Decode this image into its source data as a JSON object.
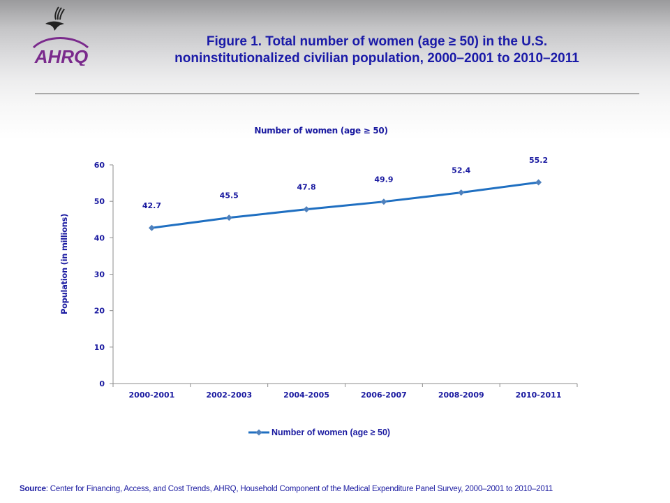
{
  "header": {
    "logos": [
      {
        "name": "hhs-eagle-icon"
      },
      {
        "name": "ahrq-logo",
        "text": "AHRQ"
      }
    ],
    "title_line1": "Figure 1. Total number of women (age ≥ 50) in the U.S.",
    "title_line2": "noninstitutionalized  civilian  population, 2000–2001 to 2010–2011"
  },
  "colors": {
    "title_text": "#1a1aa8",
    "series_line": "#1f6fc1",
    "marker": "#4f81bd",
    "axis": "#8c8c8c"
  },
  "chart_data": {
    "type": "line",
    "title": "Number of women (age ≥ 50)",
    "xlabel": "",
    "ylabel": "Population (in millions)",
    "categories": [
      "2000-2001",
      "2002-2003",
      "2004-2005",
      "2006-2007",
      "2008-2009",
      "2010-2011"
    ],
    "series": [
      {
        "name": "Number of women (age ≥ 50)",
        "values": [
          42.7,
          45.5,
          47.8,
          49.9,
          52.4,
          55.2
        ],
        "marker": "diamond"
      }
    ],
    "ylim": [
      0,
      60
    ],
    "yticks": [
      0,
      10,
      20,
      30,
      40,
      50,
      60
    ],
    "grid": false,
    "data_labels": [
      "42.7",
      "45.5",
      "47.8",
      "49.9",
      "52.4",
      "55.2"
    ],
    "legend_position": "bottom"
  },
  "source": {
    "label": "Source",
    "text": ": Center for Financing, Access, and Cost Trends, AHRQ,  Household Component of the Medical Expenditure Panel Survey,  2000–2001 to 2010–2011"
  }
}
